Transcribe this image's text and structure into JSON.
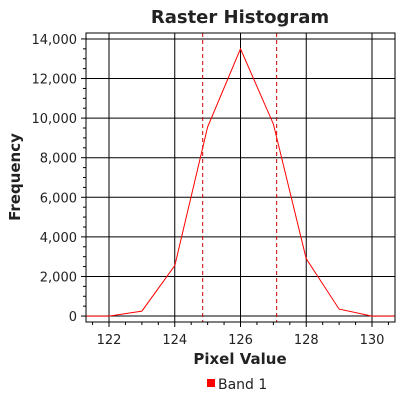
{
  "chart_data": {
    "type": "line",
    "title": "Raster Histogram",
    "xlabel": "Pixel Value",
    "ylabel": "Frequency",
    "xlim": [
      121.3,
      130.7
    ],
    "ylim": [
      -300,
      14300
    ],
    "x_ticks": [
      122,
      124,
      126,
      128,
      130
    ],
    "x_tick_labels": [
      "122",
      "124",
      "126",
      "128",
      "130"
    ],
    "y_ticks": [
      0,
      2000,
      4000,
      6000,
      8000,
      10000,
      12000,
      14000
    ],
    "y_tick_labels": [
      "0",
      "2,000",
      "4,000",
      "6,000",
      "8,000",
      "10,000",
      "12,000",
      "14,000"
    ],
    "grid": true,
    "legend_position": "bottom-center",
    "series": [
      {
        "name": "Band 1",
        "color": "#ff0000",
        "x": [
          121.3,
          122,
          123,
          124,
          125,
          126,
          127,
          128,
          129,
          130,
          130.7
        ],
        "y": [
          0,
          0,
          250,
          2550,
          9550,
          13500,
          9700,
          2900,
          350,
          0,
          0
        ]
      }
    ],
    "reference_lines": [
      {
        "x": 124.85,
        "color": "#cc0000",
        "style": "dashed"
      },
      {
        "x": 127.1,
        "color": "#cc0000",
        "style": "dashed"
      }
    ]
  }
}
